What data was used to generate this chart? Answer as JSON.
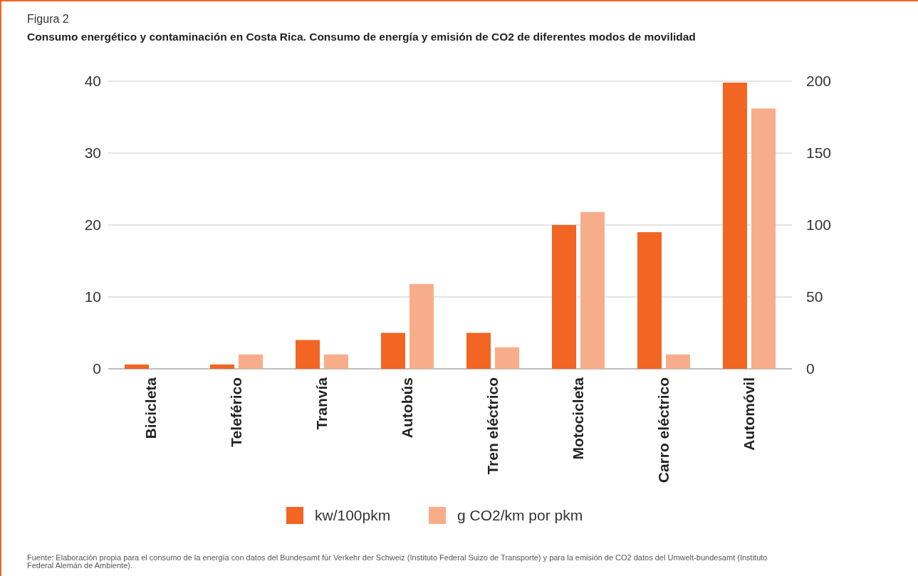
{
  "chart_data": {
    "type": "bar",
    "subtitle": "Figura 2",
    "title": "Consumo energético y contaminación en Costa Rica. Consumo de energía y emisión de CO2 de diferentes modos de movilidad",
    "categories": [
      "Bicicleta",
      "Teleférico",
      "Tranvía",
      "Autobús",
      "Tren eléctrico",
      "Motocicleta",
      "Carro eléctrico",
      "Automóvil"
    ],
    "series": [
      {
        "name": "kw/100pkm",
        "color": "#f26522",
        "values": [
          0.6,
          0.6,
          4,
          5,
          5,
          20,
          19,
          39.8
        ]
      },
      {
        "name": "g CO2/km por pkm",
        "color": "#f8ad8a",
        "axis": "y2",
        "values": [
          0,
          10,
          10,
          59,
          15,
          109,
          10,
          181
        ]
      }
    ],
    "ylim": [
      0,
      40
    ],
    "yticks": [
      0,
      10,
      20,
      30,
      40
    ],
    "y2lim": [
      0,
      200
    ],
    "y2ticks": [
      0,
      50,
      100,
      150,
      200
    ],
    "grid": "y",
    "legend": "bottom",
    "annotations": [
      "Fuente: Elaboración propia para el consumo de la energía con datos del Bundesamt für Verkehr der Schweiz (Instituto Federal Suizo de Transporte) y para la emisión de CO2 datos del Umwelt-bundesamt (Instituto Federal Alemán de Ambiente)."
    ]
  }
}
